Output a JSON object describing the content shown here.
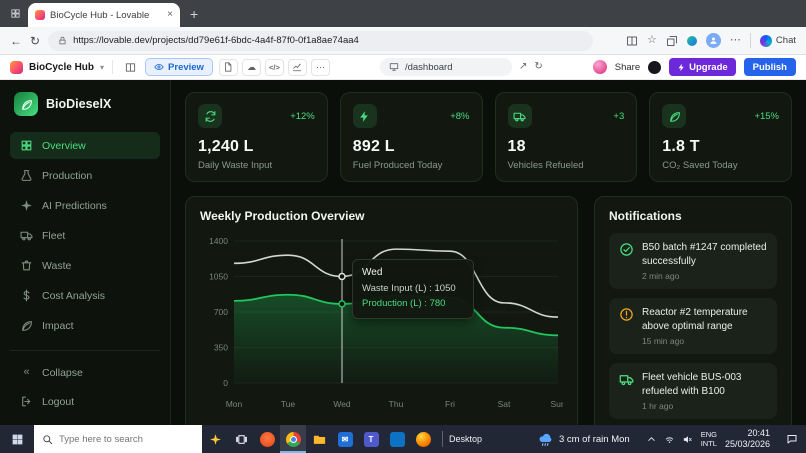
{
  "colors": {
    "accent_green": "#4ade80",
    "warning_orange": "#f5a524",
    "publish_blue": "#2563eb",
    "upgrade_purple": "#6d28d9"
  },
  "browser": {
    "tab": {
      "title": "BioCycle Hub - Lovable"
    },
    "address": {
      "url": "https://lovable.dev/projects/dd79e61f-6bdc-4a4f-87f0-0f1a8ae74aa4"
    },
    "right_icons": [
      "split-screen",
      "favorites-star",
      "collections",
      "extension",
      "profile-avatar",
      "more-menu"
    ],
    "chat_label": "Chat"
  },
  "builder_bar": {
    "project_name": "BioCycle Hub",
    "preview_label": "Preview",
    "tool_icons": [
      "file",
      "cloud",
      "code",
      "chart",
      "more"
    ],
    "path_value": "/dashboard",
    "share_label": "Share",
    "upgrade_label": "Upgrade",
    "publish_label": "Publish"
  },
  "sidebar": {
    "brand": "BioDieselX",
    "items": [
      {
        "label": "Overview",
        "icon": "grid",
        "active": true
      },
      {
        "label": "Production",
        "icon": "flask",
        "active": false
      },
      {
        "label": "AI Predictions",
        "icon": "sparkle",
        "active": false
      },
      {
        "label": "Fleet",
        "icon": "truck",
        "active": false
      },
      {
        "label": "Waste",
        "icon": "trash",
        "active": false
      },
      {
        "label": "Cost Analysis",
        "icon": "dollar",
        "active": false
      },
      {
        "label": "Impact",
        "icon": "leaf",
        "active": false
      }
    ],
    "collapse_label": "Collapse",
    "logout_label": "Logout"
  },
  "stats": [
    {
      "icon": "recycle",
      "delta": "+12%",
      "value": "1,240 L",
      "label": "Daily Waste Input"
    },
    {
      "icon": "bolt",
      "delta": "+8%",
      "value": "892 L",
      "label": "Fuel Produced Today"
    },
    {
      "icon": "truck",
      "delta": "+3",
      "value": "18",
      "label": "Vehicles Refueled"
    },
    {
      "icon": "leaf",
      "delta": "+15%",
      "value": "1.8 T",
      "label": "CO₂ Saved Today"
    }
  ],
  "chart_data": {
    "type": "line",
    "title": "Weekly Production Overview",
    "categories": [
      "Mon",
      "Tue",
      "Wed",
      "Thu",
      "Fri",
      "Sat",
      "Sun"
    ],
    "series": [
      {
        "name": "Waste Input (L)",
        "color": "#d1d7d1",
        "values": [
          1180,
          1260,
          1050,
          1320,
          1300,
          790,
          650
        ]
      },
      {
        "name": "Production (L)",
        "color": "#22c55e",
        "values": [
          810,
          870,
          780,
          860,
          840,
          545,
          470
        ]
      }
    ],
    "ylim": [
      0,
      1400
    ],
    "yticks": [
      0,
      350,
      700,
      1050,
      1400
    ],
    "grid": true,
    "legend": false,
    "tooltip": {
      "category": "Wed",
      "rows": [
        {
          "text": "Waste Input (L) : 1050"
        },
        {
          "text": "Production (L) : 780"
        }
      ]
    }
  },
  "notifications": {
    "title": "Notifications",
    "items": [
      {
        "icon": "check",
        "tone": "success",
        "text": "B50 batch #1247 completed successfully",
        "time": "2 min ago"
      },
      {
        "icon": "warning",
        "tone": "warning",
        "text": "Reactor #2 temperature above optimal range",
        "time": "15 min ago"
      },
      {
        "icon": "truck",
        "tone": "success",
        "text": "Fleet vehicle BUS-003 refueled with B100",
        "time": "1 hr ago"
      }
    ]
  },
  "taskbar": {
    "search_placeholder": "Type here to search",
    "icons_left": [
      "search-highlights",
      "task-view"
    ],
    "apps": [
      "brave",
      "chrome",
      "file-explorer",
      "mail",
      "teams",
      "vscode",
      "firefox"
    ],
    "active_app": "chrome",
    "desktop_label": "Desktop",
    "weather": "3 cm of rain Mon",
    "tray_icons": [
      "chevron-up",
      "wifi",
      "speaker-mute"
    ],
    "lang_line1": "ENG",
    "lang_line2": "INTL",
    "time": "20:41",
    "date": "25/03/2026"
  }
}
